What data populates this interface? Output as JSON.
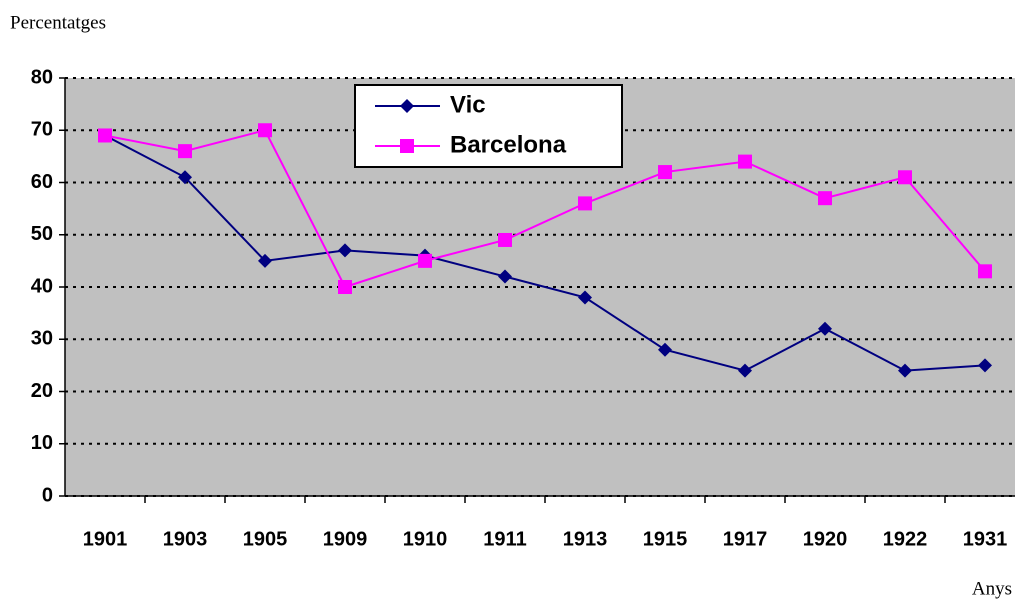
{
  "chart_data": {
    "type": "line",
    "y_label": "Percentatges",
    "x_label": "Anys",
    "categories": [
      "1901",
      "1903",
      "1905",
      "1909",
      "1910",
      "1911",
      "1913",
      "1915",
      "1917",
      "1920",
      "1922",
      "1931"
    ],
    "series": [
      {
        "name": "Vic",
        "color": "#000080",
        "marker": "diamond",
        "values": [
          69,
          61,
          45,
          47,
          46,
          42,
          38,
          28,
          24,
          32,
          24,
          25
        ]
      },
      {
        "name": "Barcelona",
        "color": "#ff00ff",
        "marker": "square",
        "values": [
          69,
          66,
          70,
          40,
          45,
          49,
          56,
          62,
          64,
          57,
          61,
          43
        ]
      }
    ],
    "ylim": [
      0,
      80
    ],
    "yticks": [
      0,
      10,
      20,
      30,
      40,
      50,
      60,
      70,
      80
    ],
    "grid": true
  }
}
